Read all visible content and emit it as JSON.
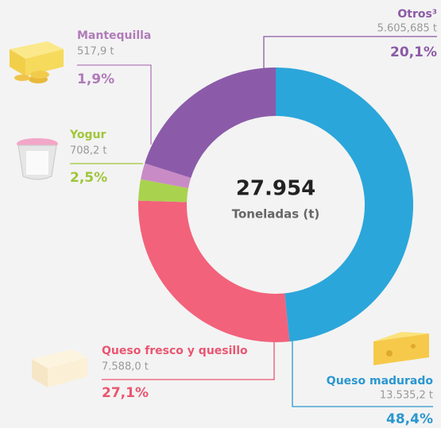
{
  "chart_data": {
    "type": "donut",
    "categories": [
      "Queso madurado",
      "Queso fresco y quesillo",
      "Yogur",
      "Mantequilla",
      "Otros³"
    ],
    "values": [
      48.4,
      27.1,
      2.5,
      1.9,
      20.1
    ],
    "value_labels": [
      "48,4%",
      "27,1%",
      "2,5%",
      "1,9%",
      "20,1%"
    ],
    "amounts": [
      "13.535,2 t",
      "7.588,0 t",
      "708,2 t",
      "517,9 t",
      "5.605,685 t"
    ],
    "colors": [
      "#2ba6da",
      "#f2627b",
      "#a9d24f",
      "#c98bc6",
      "#8b5ba9"
    ],
    "label_colors": [
      "#2a97d0",
      "#ea5570",
      "#a0c63a",
      "#b07bb9",
      "#8c5aa6"
    ],
    "total": "27.954",
    "total_label": "Toneladas (t)"
  }
}
